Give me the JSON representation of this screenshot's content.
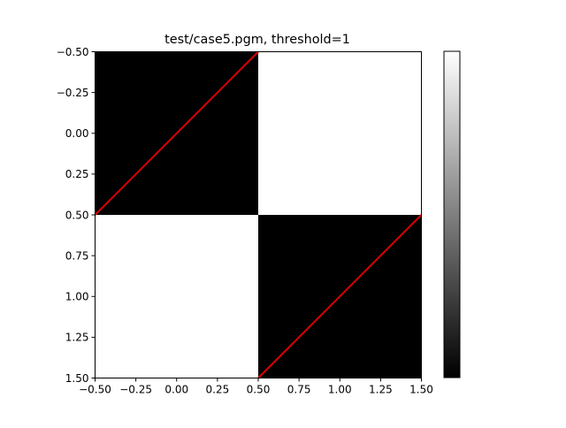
{
  "chart_data": {
    "type": "heatmap",
    "title": "test/case5.pgm, threshold=1",
    "xlabel": "",
    "ylabel": "",
    "xlim": [
      -0.5,
      1.5
    ],
    "ylim": [
      1.5,
      -0.5
    ],
    "y_inverted": true,
    "grid": false,
    "colormap": "gray",
    "cells": [
      {
        "col": 0,
        "row": 0,
        "value": 0
      },
      {
        "col": 1,
        "row": 0,
        "value": 1
      },
      {
        "col": 0,
        "row": 1,
        "value": 1
      },
      {
        "col": 1,
        "row": 1,
        "value": 0
      }
    ],
    "x_ticks": [
      -0.5,
      -0.25,
      0.0,
      0.25,
      0.5,
      0.75,
      1.0,
      1.25,
      1.5
    ],
    "x_tick_labels": [
      "−0.50",
      "−0.25",
      "0.00",
      "0.25",
      "0.50",
      "0.75",
      "1.00",
      "1.25",
      "1.50"
    ],
    "y_ticks": [
      -0.5,
      -0.25,
      0.0,
      0.25,
      0.5,
      0.75,
      1.0,
      1.25,
      1.5
    ],
    "y_tick_labels": [
      "−0.50",
      "−0.25",
      "0.00",
      "0.25",
      "0.50",
      "0.75",
      "1.00",
      "1.25",
      "1.50"
    ],
    "overlay_lines": [
      {
        "color": "#dd0000",
        "x": [
          -0.5,
          0.5
        ],
        "y": [
          0.5,
          -0.5
        ]
      },
      {
        "color": "#dd0000",
        "x": [
          0.5,
          1.5
        ],
        "y": [
          1.5,
          0.5
        ]
      }
    ],
    "colorbar": {
      "colormap": "gray",
      "range": [
        0,
        1
      ],
      "tick_labels": []
    }
  }
}
